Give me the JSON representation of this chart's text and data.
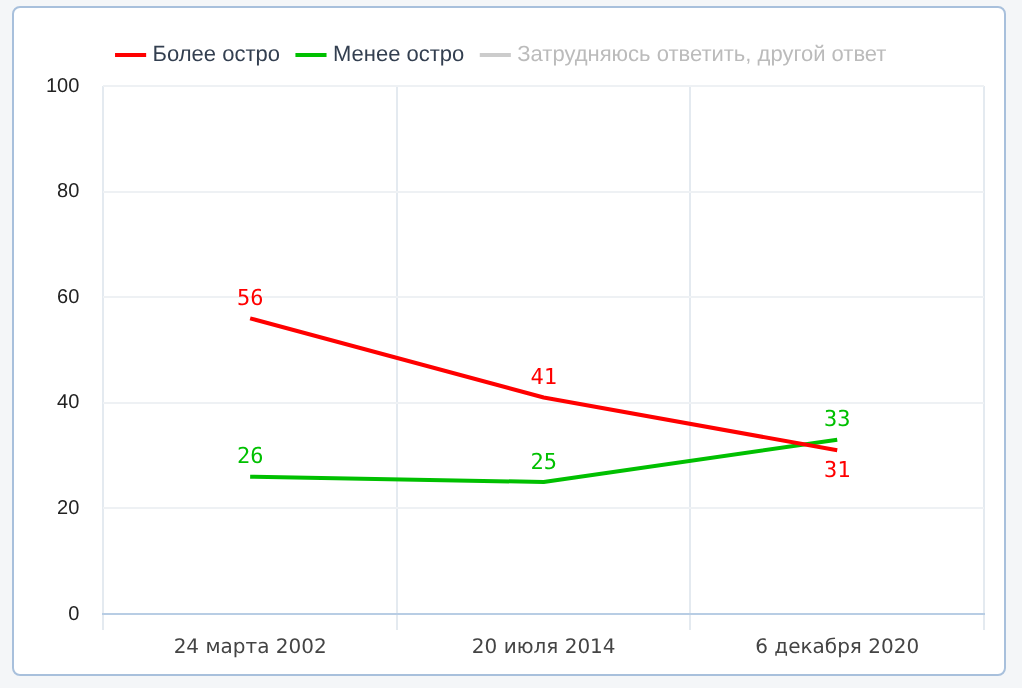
{
  "chart_data": {
    "type": "line",
    "categories": [
      "24 марта 2002",
      "20 июля 2014",
      "6 декабря 2020"
    ],
    "series": [
      {
        "name": "Более остро",
        "color": "#ff0000",
        "values": [
          56,
          41,
          31
        ]
      },
      {
        "name": "Менее остро",
        "color": "#00c000",
        "values": [
          26,
          25,
          33
        ]
      },
      {
        "name": "Затрудняюсь ответить, другой ответ",
        "color": "#cccccc",
        "values": [
          null,
          null,
          null
        ]
      }
    ],
    "ylim": [
      0,
      100
    ],
    "yticks": [
      0,
      20,
      40,
      60,
      80,
      100
    ],
    "grid": true,
    "legend": "top",
    "data_labels": true,
    "marker": "none",
    "line_style": "solid"
  }
}
